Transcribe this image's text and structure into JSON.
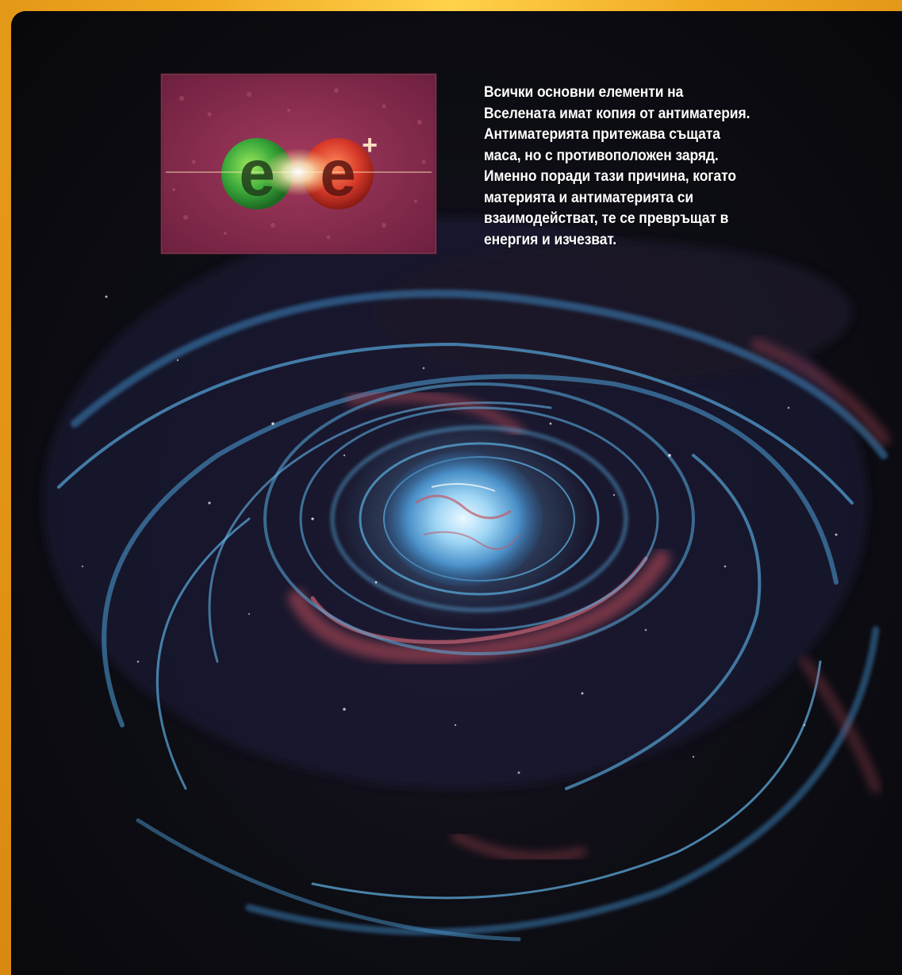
{
  "caption": {
    "text": "Всички основни елементи на\nВселената имат копия от антиматерия.\nАнтиматерията притежава същата\nмаса, но с противоположен заряд.\nИменно поради тази причина, когато\nматерията и антиматерията си\nвзаимодействат, те се превръщат в\nенергия и изчезват."
  },
  "inset": {
    "symbol_left": "e",
    "symbol_left_sup": "−",
    "symbol_right": "e",
    "symbol_right_sup": "+"
  },
  "colors": {
    "frame": "#e8a520",
    "background": "#0b0b10",
    "swirl_blue": "#4fa6d8",
    "swirl_red": "#c0505a",
    "inset_bg": "#8a2a4a",
    "electron": "#39a83a",
    "positron": "#d43a2a"
  }
}
